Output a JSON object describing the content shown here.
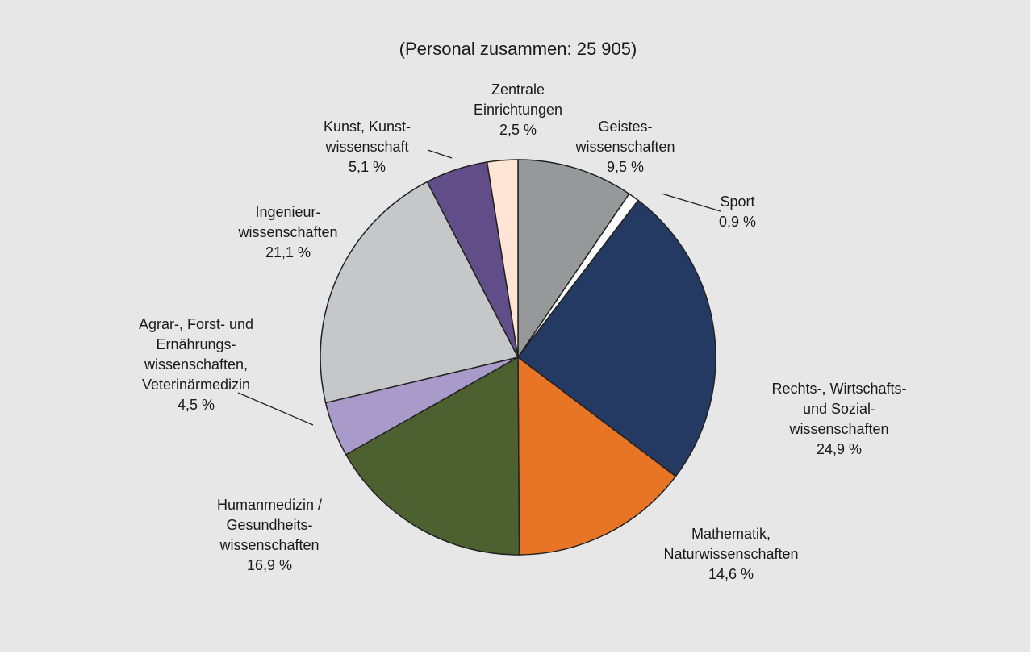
{
  "chart_data": {
    "type": "pie",
    "title": "(Personal zusammen: 25 905)",
    "categories": [
      [
        "Geistes-",
        "wissenschaften"
      ],
      [
        "Sport"
      ],
      [
        "Rechts-, Wirtschafts-",
        "und Sozial-",
        "wissenschaften"
      ],
      [
        "Mathematik,",
        "Naturwissenschaften"
      ],
      [
        "Humanmedizin /",
        "Gesundheits-",
        "wissenschaften"
      ],
      [
        "Agrar-, Forst- und",
        "Ernährungs-",
        "wissenschaften,",
        "Veterinärmedizin"
      ],
      [
        "Ingenieur-",
        "wissenschaften"
      ],
      [
        "Kunst, Kunst-",
        "wissenschaft"
      ],
      [
        "Zentrale",
        "Einrichtungen"
      ]
    ],
    "values": [
      9.5,
      0.9,
      24.9,
      14.6,
      16.9,
      4.5,
      21.1,
      5.1,
      2.5
    ],
    "value_labels": [
      "9,5 %",
      "0,9 %",
      "24,9 %",
      "14,6 %",
      "16,9 %",
      "4,5 %",
      "21,1 %",
      "5,1 %",
      "2,5 %"
    ],
    "colors": [
      "#97989a",
      "#ffffff",
      "#243a62",
      "#e87426",
      "#4d6130",
      "#a99bc9",
      "#c6c7c9",
      "#614d87",
      "#fde4d5"
    ]
  }
}
